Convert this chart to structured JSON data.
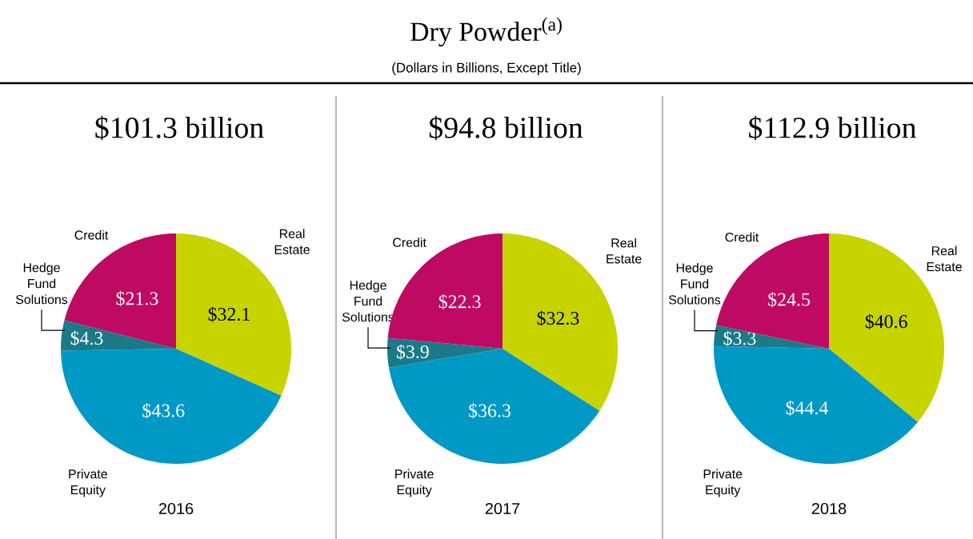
{
  "chart_data": [
    {
      "type": "other",
      "title": "Dry Powder$^{(a)}$",
      "subtitle": "(Dollars in Billions, Except Title)"
    },
    {
      "type": "pie",
      "title": "$101.3 billion",
      "xlabel": "2016",
      "categories": [
        "Real Estate",
        "Private Equity",
        "Hedge Fund Solutions",
        "Credit"
      ],
      "values": [
        32.1,
        43.6,
        4.3,
        21.3
      ],
      "value_labels": [
        "$32.1",
        "$43.6",
        "$4.3",
        "$21.3"
      ],
      "colors": [
        "#c8d400",
        "#0099c6",
        "#1a7a87",
        "#be0a63"
      ]
    },
    {
      "type": "pie",
      "title": "$94.8 billion",
      "xlabel": "2017",
      "categories": [
        "Real Estate",
        "Private Equity",
        "Hedge Fund Solutions",
        "Credit"
      ],
      "values": [
        32.3,
        36.3,
        3.9,
        22.3
      ],
      "value_labels": [
        "$32.3",
        "$36.3",
        "$3.9",
        "$22.3"
      ],
      "colors": [
        "#c8d400",
        "#0099c6",
        "#1a7a87",
        "#be0a63"
      ]
    },
    {
      "type": "pie",
      "title": "$112.9 billion",
      "xlabel": "2018",
      "categories": [
        "Real Estate",
        "Private Equity",
        "Hedge Fund Solutions",
        "Credit"
      ],
      "values": [
        40.6,
        44.4,
        3.3,
        24.5
      ],
      "value_labels": [
        "$40.6",
        "$44.4",
        "$3.3",
        "$24.5"
      ],
      "colors": [
        "#c8d400",
        "#0099c6",
        "#1a7a87",
        "#be0a63"
      ]
    }
  ]
}
